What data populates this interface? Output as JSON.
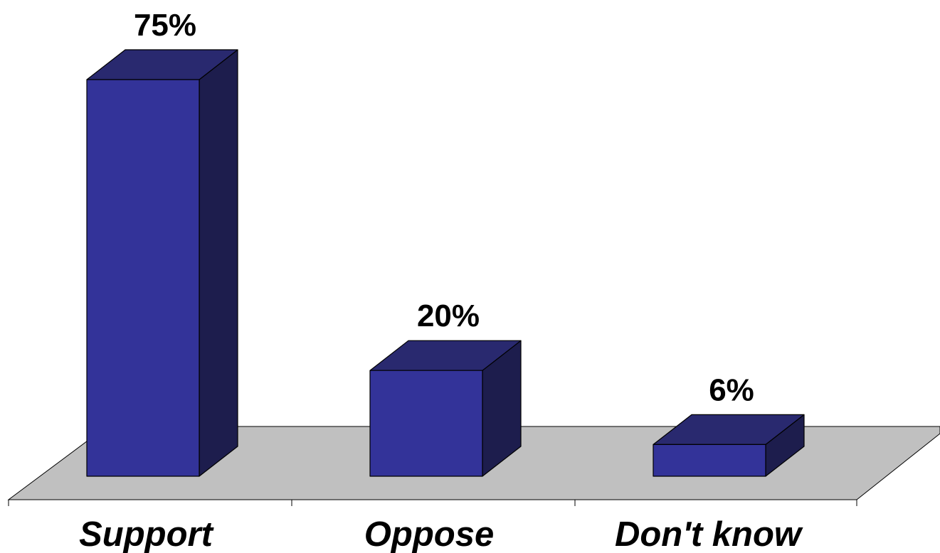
{
  "chart_data": {
    "type": "bar",
    "style": "3d-column",
    "categories": [
      "Support",
      "Oppose",
      "Don't know"
    ],
    "values": [
      75,
      20,
      6
    ],
    "value_labels": [
      "75%",
      "20%",
      "6%"
    ],
    "ylim": [
      0,
      75
    ],
    "grid": false,
    "legend": "none",
    "title": "",
    "xlabel": "",
    "ylabel": ""
  },
  "colors": {
    "bar_front": "#333399",
    "bar_top": "#29296f",
    "bar_side": "#1d1d4d",
    "floor": "#c0c0c0",
    "outline": "#000000"
  }
}
